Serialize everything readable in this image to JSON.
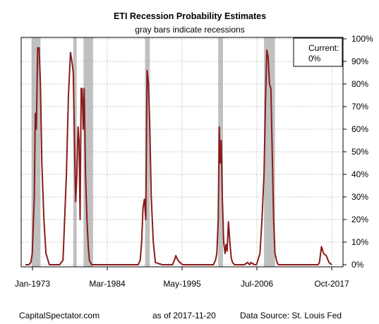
{
  "chart_data": {
    "type": "line",
    "title": "ETI Recession Probability Estimates",
    "subtitle": "gray bars indicate recessions",
    "xlabel": "",
    "ylabel": "",
    "x_ticks": [
      "Jan-1973",
      "Mar-1984",
      "May-1995",
      "Jul-2006",
      "Oct-2017"
    ],
    "y_ticks": [
      "0%",
      "10%",
      "20%",
      "30%",
      "40%",
      "50%",
      "60%",
      "70%",
      "80%",
      "90%",
      "100%"
    ],
    "xlim": [
      1973.0,
      2017.8
    ],
    "ylim": [
      0,
      100
    ],
    "grid": true,
    "legend_box": {
      "label": "Current:",
      "value": "0%"
    },
    "recessions": [
      {
        "start": 1973.9,
        "end": 1975.2
      },
      {
        "start": 1980.0,
        "end": 1980.5
      },
      {
        "start": 1981.5,
        "end": 1982.9
      },
      {
        "start": 1990.5,
        "end": 1991.2
      },
      {
        "start": 2001.2,
        "end": 2001.9
      },
      {
        "start": 2007.9,
        "end": 2009.5
      }
    ],
    "series": [
      {
        "color": "#8b1a1a",
        "x": [
          1973.0,
          1973.5,
          1973.8,
          1974.0,
          1974.3,
          1974.45,
          1974.6,
          1974.8,
          1975.0,
          1975.2,
          1975.4,
          1975.7,
          1976.0,
          1976.5,
          1977.0,
          1977.5,
          1978.0,
          1978.5,
          1979.0,
          1979.3,
          1979.6,
          1979.8,
          1980.0,
          1980.2,
          1980.35,
          1980.5,
          1980.7,
          1980.85,
          1981.0,
          1981.15,
          1981.3,
          1981.45,
          1981.6,
          1981.8,
          1982.0,
          1982.2,
          1982.35,
          1982.5,
          1982.7,
          1982.9,
          1983.1,
          1983.3,
          1983.6,
          1984.0,
          1985.0,
          1986.0,
          1987.0,
          1988.0,
          1988.5,
          1989.0,
          1989.5,
          1989.8,
          1990.0,
          1990.2,
          1990.4,
          1990.6,
          1990.8,
          1991.0,
          1991.2,
          1991.4,
          1991.7,
          1992.0,
          1993.0,
          1994.0,
          1994.5,
          1994.8,
          1995.0,
          1995.3,
          1995.6,
          1996.0,
          1997.0,
          1998.0,
          1999.0,
          2000.0,
          2000.5,
          2000.8,
          2001.0,
          2001.2,
          2001.35,
          2001.5,
          2001.65,
          2001.8,
          2002.0,
          2002.2,
          2002.35,
          2002.5,
          2002.7,
          2002.9,
          2003.1,
          2003.3,
          2003.6,
          2004.0,
          2005.0,
          2005.5,
          2005.8,
          2006.0,
          2006.5,
          2006.8,
          2007.0,
          2007.3,
          2007.6,
          2007.9,
          2008.1,
          2008.3,
          2008.5,
          2008.7,
          2008.9,
          2009.1,
          2009.3,
          2009.5,
          2009.8,
          2010.0,
          2010.5,
          2011.0,
          2012.0,
          2013.0,
          2014.0,
          2014.5,
          2015.0,
          2015.3,
          2015.5,
          2015.8,
          2016.0,
          2016.3,
          2016.6,
          2017.0,
          2017.4,
          2017.8
        ],
        "values": [
          0,
          0,
          1,
          5,
          30,
          67,
          60,
          96,
          96,
          80,
          45,
          20,
          5,
          0,
          0,
          0,
          0,
          2,
          40,
          75,
          94,
          90,
          85,
          50,
          28,
          38,
          61,
          55,
          20,
          78,
          78,
          60,
          78,
          40,
          20,
          8,
          2,
          1,
          0,
          0,
          0,
          0,
          0,
          0,
          0,
          0,
          0,
          0,
          0,
          0,
          0,
          2,
          10,
          25,
          29,
          20,
          86,
          80,
          60,
          30,
          10,
          1,
          0,
          0,
          0,
          2,
          4,
          2,
          1,
          0,
          0,
          0,
          0,
          0,
          0,
          2,
          5,
          20,
          61,
          45,
          55,
          30,
          10,
          5,
          9,
          6,
          19,
          10,
          3,
          1,
          0,
          0,
          0,
          1,
          0,
          1,
          0,
          0,
          2,
          5,
          20,
          40,
          70,
          95,
          92,
          80,
          78,
          50,
          20,
          5,
          1,
          0,
          0,
          0,
          0,
          0,
          0,
          0,
          0,
          0,
          0,
          0,
          1,
          8,
          5,
          4,
          1,
          0
        ]
      }
    ]
  },
  "footer": {
    "left": "CapitalSpectator.com",
    "middle": "as of 2017-11-20",
    "right": "Data Source: St. Louis Fed"
  }
}
